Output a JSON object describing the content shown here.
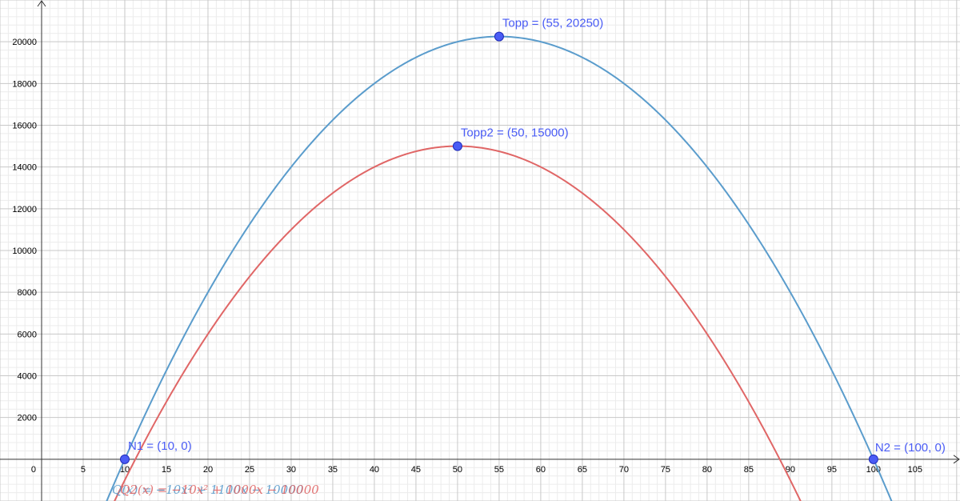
{
  "chart_data": {
    "type": "line",
    "xlim": [
      -5,
      110.4
    ],
    "ylim": [
      -2000,
      22000
    ],
    "grid": true,
    "x_ticks": [
      0,
      5,
      10,
      15,
      20,
      25,
      30,
      35,
      40,
      45,
      50,
      55,
      60,
      65,
      70,
      75,
      80,
      85,
      90,
      95,
      100,
      105
    ],
    "y_ticks": [
      2000,
      4000,
      6000,
      8000,
      10000,
      12000,
      14000,
      16000,
      18000,
      20000
    ],
    "series": [
      {
        "formula": "-10x^2 + 1100x - 10000",
        "color": "#5a9ccc",
        "coefficients": {
          "a": -10,
          "b": 1100,
          "c": -10000
        },
        "x_range": [
          7.5,
          102.5
        ]
      },
      {
        "formula": "-10x^2 + 1000x - 10000",
        "color": "#e06666",
        "coefficients": {
          "a": -10,
          "b": 1000,
          "c": -10000
        },
        "x_range": [
          8.4,
          92
        ]
      }
    ],
    "points": [
      {
        "label": "Topp = (55, 20250)",
        "x": 55,
        "y": 20250
      },
      {
        "label": "Topp2 = (50, 15000)",
        "x": 50,
        "y": 15000
      },
      {
        "label": "N1 = (10, 0)",
        "x": 10,
        "y": 0
      },
      {
        "label": "N2 = (100, 0)",
        "x": 100,
        "y": 0
      }
    ],
    "point_color": "#4a5cf5",
    "label_color": "#4a5cf5",
    "equation_labels": [
      {
        "text": "Q(x) = −10x² + 1100x − 10000",
        "color": "#5a9ccc"
      },
      {
        "text": "Q2(x) = −10x² + 1000x − 10000",
        "color": "#e06666"
      }
    ]
  }
}
